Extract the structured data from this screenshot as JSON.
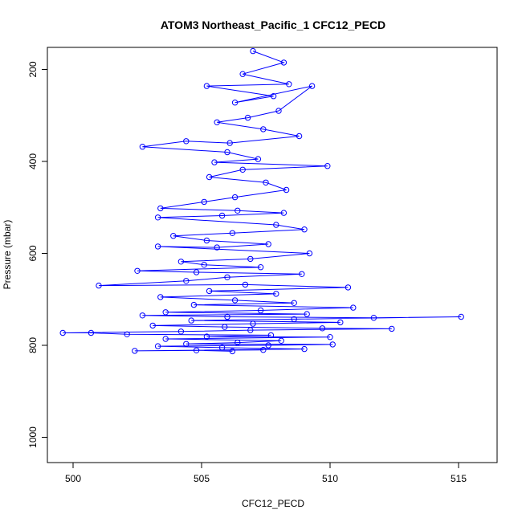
{
  "chart_data": {
    "type": "scatter",
    "title": "ATOM3 Northeast_Pacific_1 CFC12_PECD",
    "xlabel": "CFC12_PECD",
    "ylabel": "Pressure (mbar)",
    "xlim": [
      499,
      516.5
    ],
    "ylim": [
      1055,
      152
    ],
    "y_reversed": true,
    "x_ticks": [
      500,
      505,
      510,
      515
    ],
    "y_ticks": [
      200,
      400,
      600,
      800,
      1000
    ],
    "x_tick_labels": [
      "500",
      "505",
      "510",
      "515"
    ],
    "y_tick_labels": [
      "200",
      "400",
      "600",
      "800",
      "1000"
    ],
    "grid": false,
    "legend": "none",
    "colors": {
      "series": "#0000ff",
      "axes": "#000000"
    },
    "series": [
      {
        "values": [
          [
            507.0,
            160
          ],
          [
            508.2,
            185
          ],
          [
            506.6,
            210
          ],
          [
            508.4,
            232
          ],
          [
            505.2,
            236
          ],
          [
            507.8,
            258
          ],
          [
            506.3,
            272
          ],
          [
            509.3,
            236
          ],
          [
            508.0,
            290
          ],
          [
            506.8,
            305
          ],
          [
            505.6,
            315
          ],
          [
            507.4,
            330
          ],
          [
            508.8,
            345
          ],
          [
            506.1,
            360
          ],
          [
            504.4,
            356
          ],
          [
            502.7,
            368
          ],
          [
            506.0,
            380
          ],
          [
            507.2,
            395
          ],
          [
            505.5,
            402
          ],
          [
            509.9,
            410
          ],
          [
            506.6,
            418
          ],
          [
            505.3,
            434
          ],
          [
            507.5,
            446
          ],
          [
            508.3,
            462
          ],
          [
            506.3,
            478
          ],
          [
            505.1,
            488
          ],
          [
            503.4,
            502
          ],
          [
            506.4,
            507
          ],
          [
            508.2,
            512
          ],
          [
            505.8,
            518
          ],
          [
            503.3,
            522
          ],
          [
            507.9,
            538
          ],
          [
            509.0,
            548
          ],
          [
            506.2,
            556
          ],
          [
            503.9,
            562
          ],
          [
            505.2,
            572
          ],
          [
            507.6,
            580
          ],
          [
            505.6,
            587
          ],
          [
            503.3,
            585
          ],
          [
            509.2,
            600
          ],
          [
            506.9,
            612
          ],
          [
            504.2,
            618
          ],
          [
            505.1,
            625
          ],
          [
            507.3,
            630
          ],
          [
            502.5,
            638
          ],
          [
            504.8,
            641
          ],
          [
            508.9,
            645
          ],
          [
            506.0,
            652
          ],
          [
            504.4,
            660
          ],
          [
            501.0,
            670
          ],
          [
            506.7,
            668
          ],
          [
            510.7,
            674
          ],
          [
            505.3,
            682
          ],
          [
            507.9,
            688
          ],
          [
            503.4,
            695
          ],
          [
            506.3,
            702
          ],
          [
            508.6,
            708
          ],
          [
            504.7,
            712
          ],
          [
            510.9,
            718
          ],
          [
            507.3,
            724
          ],
          [
            503.6,
            728
          ],
          [
            509.1,
            732
          ],
          [
            502.7,
            735
          ],
          [
            506.0,
            738
          ],
          [
            511.7,
            740
          ],
          [
            515.1,
            738
          ],
          [
            508.6,
            743
          ],
          [
            504.6,
            746
          ],
          [
            510.4,
            750
          ],
          [
            507.0,
            753
          ],
          [
            503.1,
            757
          ],
          [
            505.9,
            760
          ],
          [
            509.7,
            763
          ],
          [
            512.4,
            764
          ],
          [
            506.9,
            767
          ],
          [
            504.2,
            770
          ],
          [
            499.6,
            773
          ],
          [
            500.7,
            773
          ],
          [
            502.1,
            776
          ],
          [
            507.7,
            778
          ],
          [
            505.2,
            781
          ],
          [
            510.0,
            782
          ],
          [
            503.6,
            786
          ],
          [
            508.1,
            790
          ],
          [
            506.4,
            794
          ],
          [
            504.4,
            797
          ],
          [
            510.1,
            798
          ],
          [
            507.6,
            800
          ],
          [
            503.3,
            802
          ],
          [
            505.8,
            805
          ],
          [
            509.0,
            808
          ],
          [
            502.4,
            812
          ],
          [
            507.4,
            810
          ],
          [
            504.8,
            811
          ],
          [
            506.2,
            813
          ]
        ]
      }
    ]
  }
}
